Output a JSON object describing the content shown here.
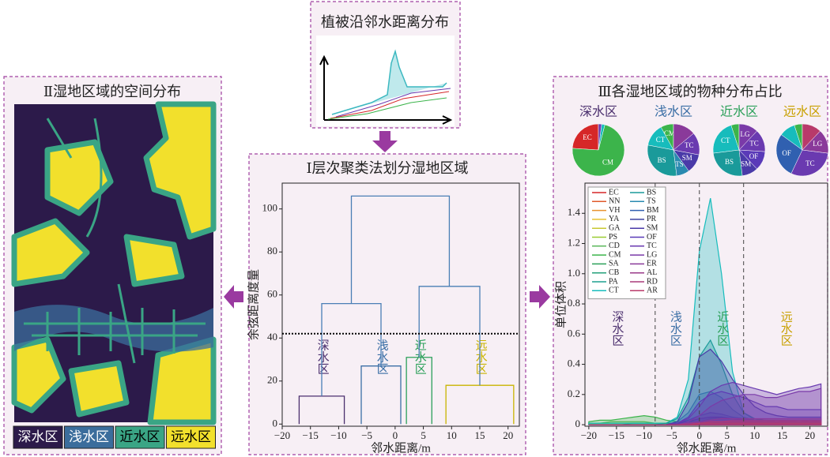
{
  "top_panel": {
    "title": "植被沿邻水距离分布"
  },
  "map_panel": {
    "title": "Ⅱ湿地区域的空间分布",
    "legend": [
      {
        "label": "深水区",
        "color": "#2c1a4a",
        "text_color": "#ffffff"
      },
      {
        "label": "浅水区",
        "color": "#3b6d9c",
        "text_color": "#ffffff"
      },
      {
        "label": "近水区",
        "color": "#3aa585",
        "text_color": "#000000"
      },
      {
        "label": "远水区",
        "color": "#f2e02c",
        "text_color": "#000000"
      }
    ]
  },
  "right_panel": {
    "title": "Ⅲ各湿地区域的物种分布占比"
  },
  "chart_data": [
    {
      "type": "dendrogram",
      "title": "Ⅰ层次聚类法划分湿地区域",
      "xlabel": "邻水距离/m",
      "ylabel": "余弦距离度量",
      "xlim": [
        -20,
        22
      ],
      "ylim": [
        -1,
        112
      ],
      "xticks": [
        {
          "value": -20,
          "label": "−20"
        },
        {
          "value": -15,
          "label": "−15"
        },
        {
          "value": -10,
          "label": "−10"
        },
        {
          "value": -5,
          "label": "−5"
        },
        0,
        5,
        10,
        15,
        20
      ],
      "yticks": [
        0,
        20,
        40,
        60,
        80,
        100
      ],
      "link_color": "#4a7fb5",
      "cut_height": 42,
      "clusters": [
        {
          "name": "深水区",
          "color": "#4b2f6e",
          "x": [
            -17,
            -9
          ],
          "height": 13
        },
        {
          "name": "浅水区",
          "color": "#3a6ea5",
          "x": [
            -6,
            1
          ],
          "height": 27
        },
        {
          "name": "近水区",
          "color": "#2ca05a",
          "x": [
            2,
            6.5
          ],
          "height": 31
        },
        {
          "name": "远水区",
          "color": "#c8b400",
          "x": [
            9,
            21
          ],
          "height": 18
        }
      ],
      "merges": [
        {
          "x": [
            -13,
            -2.5
          ],
          "height": 56,
          "child_heights": [
            13,
            27
          ]
        },
        {
          "x": [
            4.25,
            15
          ],
          "height": 64,
          "child_heights": [
            31,
            18
          ]
        },
        {
          "x": [
            -7.75,
            9.6
          ],
          "height": 106,
          "child_heights": [
            56,
            64
          ]
        }
      ]
    },
    {
      "type": "pie",
      "title": "深水区",
      "color": "#4b2f6e",
      "slices": [
        {
          "label": "EC",
          "value": 24,
          "color": "#d62728"
        },
        {
          "label": "CM",
          "value": 72,
          "color": "#3cb44b"
        },
        {
          "label": null,
          "value": 2,
          "color": "#17bcbc"
        },
        {
          "label": null,
          "value": 2,
          "color": "#6a3ab0"
        }
      ]
    },
    {
      "type": "pie",
      "title": "浅水区",
      "color": "#3a6ea5",
      "slices": [
        {
          "label": "CM",
          "value": 8,
          "color": "#3cb44b"
        },
        {
          "label": "CT",
          "value": 14,
          "color": "#17bcbc"
        },
        {
          "label": "BS",
          "value": 30,
          "color": "#1a9a9a"
        },
        {
          "label": "TS",
          "value": 8,
          "color": "#2a8ab0"
        },
        {
          "label": "SM",
          "value": 12,
          "color": "#4a3aa8"
        },
        {
          "label": "TC",
          "value": 14,
          "color": "#6a3ab0"
        },
        {
          "label": null,
          "value": 14,
          "color": "#8a3a9a"
        }
      ]
    },
    {
      "type": "pie",
      "title": "近水区",
      "color": "#2ca05a",
      "slices": [
        {
          "label": null,
          "value": 5,
          "color": "#3cb44b"
        },
        {
          "label": "CT",
          "value": 22,
          "color": "#17bcbc"
        },
        {
          "label": "BS",
          "value": 25,
          "color": "#1a9a9a"
        },
        {
          "label": "SM",
          "value": 10,
          "color": "#4a3aa8"
        },
        {
          "label": "OF",
          "value": 12,
          "color": "#5a3ab8"
        },
        {
          "label": "TC",
          "value": 14,
          "color": "#6a3ab0"
        },
        {
          "label": "LG",
          "value": 12,
          "color": "#7a3aa8"
        }
      ]
    },
    {
      "type": "pie",
      "title": "远水区",
      "color": "#c8a000",
      "slices": [
        {
          "label": null,
          "value": 5,
          "color": "#3cb44b"
        },
        {
          "label": null,
          "value": 10,
          "color": "#17bcbc"
        },
        {
          "label": "OF",
          "value": 28,
          "color": "#3060b0"
        },
        {
          "label": "TC",
          "value": 30,
          "color": "#6a3ab0"
        },
        {
          "label": "LG",
          "value": 15,
          "color": "#8a3a9a"
        },
        {
          "label": null,
          "value": 12,
          "color": "#b83a6a"
        }
      ]
    },
    {
      "type": "area",
      "xlabel": "邻水距离/m",
      "ylabel": "单位体积",
      "xlim": [
        -20.7,
        23.2
      ],
      "ylim": [
        -0.01,
        1.6
      ],
      "xticks": [
        {
          "value": -20,
          "label": "−20"
        },
        {
          "value": -15,
          "label": "−15"
        },
        {
          "value": -10,
          "label": "−10"
        },
        {
          "value": -5,
          "label": "−5"
        },
        0,
        5,
        10,
        15,
        20
      ],
      "yticks": [
        0,
        0.2,
        0.4,
        0.6,
        0.8,
        {
          "value": 1,
          "label": "1.0"
        },
        1.2,
        1.4
      ],
      "zone_boundaries": [
        -8,
        0,
        8
      ],
      "annotations": [
        {
          "text": "深水区",
          "x": -15,
          "y": 0.64,
          "color": "#4b2f6e"
        },
        {
          "text": "浅水区",
          "x": -4.5,
          "y": 0.64,
          "color": "#3a6ea5"
        },
        {
          "text": "近水区",
          "x": 4,
          "y": 0.64,
          "color": "#2ca05a"
        },
        {
          "text": "远水区",
          "x": 15.5,
          "y": 0.64,
          "color": "#c8a000"
        }
      ],
      "x": [
        -20,
        -18,
        -16,
        -14,
        -12,
        -10,
        -8,
        -6,
        -4,
        -2,
        0,
        2,
        4,
        6,
        8,
        10,
        12,
        14,
        16,
        18,
        20,
        22
      ],
      "series": [
        {
          "name": "EC",
          "color": "#d62728",
          "values": [
            0,
            0,
            0,
            0,
            0,
            0,
            0,
            0,
            0,
            0.01,
            0.02,
            0.04,
            0.05,
            0.04,
            0.03,
            0.03,
            0.03,
            0.02,
            0.03,
            0.02,
            0.03,
            0.02
          ]
        },
        {
          "name": "NN",
          "color": "#e05a2b",
          "values": [
            0,
            0,
            0,
            0,
            0,
            0,
            0,
            0,
            0,
            0,
            0.01,
            0.02,
            0.02,
            0.02,
            0.01,
            0.01,
            0.01,
            0.01,
            0.01,
            0.01,
            0.01,
            0.01
          ]
        },
        {
          "name": "VH",
          "color": "#e8922f",
          "values": [
            0,
            0,
            0,
            0,
            0,
            0,
            0,
            0,
            0,
            0,
            0.01,
            0.01,
            0.02,
            0.02,
            0.02,
            0.01,
            0.01,
            0.01,
            0.01,
            0.01,
            0.01,
            0.01
          ]
        },
        {
          "name": "YA",
          "color": "#e8c030",
          "values": [
            0,
            0,
            0,
            0,
            0,
            0,
            0,
            0,
            0,
            0,
            0,
            0.01,
            0.01,
            0.01,
            0.01,
            0.01,
            0.01,
            0.01,
            0.01,
            0.01,
            0.01,
            0.01
          ]
        },
        {
          "name": "GA",
          "color": "#c8c830",
          "values": [
            0,
            0,
            0,
            0,
            0,
            0,
            0,
            0,
            0,
            0,
            0.01,
            0.01,
            0.01,
            0.01,
            0,
            0,
            0,
            0,
            0,
            0,
            0,
            0
          ]
        },
        {
          "name": "PS",
          "color": "#9acd32",
          "values": [
            0.01,
            0.01,
            0.01,
            0.01,
            0.01,
            0.01,
            0.01,
            0.01,
            0.01,
            0.01,
            0.01,
            0.01,
            0.01,
            0,
            0,
            0,
            0,
            0,
            0,
            0,
            0,
            0
          ]
        },
        {
          "name": "CD",
          "color": "#5cb85c",
          "values": [
            0.01,
            0.01,
            0.02,
            0.02,
            0.02,
            0.02,
            0.01,
            0.01,
            0.01,
            0.01,
            0.01,
            0.01,
            0,
            0,
            0,
            0,
            0,
            0,
            0,
            0,
            0,
            0
          ]
        },
        {
          "name": "CM",
          "color": "#3cb44b",
          "values": [
            0.02,
            0.03,
            0.03,
            0.04,
            0.05,
            0.06,
            0.05,
            0.03,
            0.02,
            0.02,
            0.02,
            0.01,
            0.01,
            0.01,
            0.01,
            0,
            0,
            0,
            0,
            0,
            0,
            0
          ]
        },
        {
          "name": "SA",
          "color": "#2ca05a",
          "values": [
            0,
            0,
            0,
            0,
            0.01,
            0.01,
            0.01,
            0.01,
            0.01,
            0.01,
            0.01,
            0.01,
            0,
            0,
            0,
            0,
            0,
            0,
            0,
            0,
            0,
            0
          ]
        },
        {
          "name": "CB",
          "color": "#23a07a",
          "values": [
            0,
            0,
            0,
            0,
            0,
            0,
            0,
            0,
            0.01,
            0.01,
            0.02,
            0.02,
            0.01,
            0.01,
            0,
            0,
            0,
            0,
            0,
            0,
            0,
            0
          ]
        },
        {
          "name": "PA",
          "color": "#1fa08f",
          "values": [
            0,
            0,
            0,
            0,
            0,
            0,
            0,
            0,
            0.01,
            0.01,
            0.02,
            0.02,
            0.02,
            0.01,
            0.01,
            0,
            0,
            0,
            0,
            0,
            0,
            0
          ]
        },
        {
          "name": "CT",
          "color": "#17bcbc",
          "values": [
            0.01,
            0.01,
            0.01,
            0.01,
            0.01,
            0.01,
            0.01,
            0.01,
            0.05,
            0.3,
            1.15,
            1.5,
            1.0,
            0.35,
            0.08,
            0.03,
            0.02,
            0.02,
            0.01,
            0.01,
            0.01,
            0.01
          ]
        },
        {
          "name": "BS",
          "color": "#1a9a9a",
          "values": [
            0,
            0,
            0,
            0,
            0,
            0,
            0,
            0.01,
            0.04,
            0.18,
            0.45,
            0.56,
            0.4,
            0.2,
            0.08,
            0.04,
            0.03,
            0.02,
            0.02,
            0.02,
            0.02,
            0.02
          ]
        },
        {
          "name": "TS",
          "color": "#2a8ab0",
          "values": [
            0,
            0,
            0,
            0,
            0,
            0,
            0,
            0,
            0.02,
            0.08,
            0.2,
            0.22,
            0.18,
            0.1,
            0.05,
            0.03,
            0.02,
            0.02,
            0.02,
            0.02,
            0.02,
            0.02
          ]
        },
        {
          "name": "BM",
          "color": "#3060b0",
          "values": [
            0,
            0,
            0,
            0,
            0,
            0,
            0,
            0,
            0.01,
            0.03,
            0.06,
            0.08,
            0.07,
            0.05,
            0.04,
            0.03,
            0.03,
            0.03,
            0.03,
            0.03,
            0.03,
            0.03
          ]
        },
        {
          "name": "PR",
          "color": "#3a40a0",
          "values": [
            0,
            0,
            0,
            0,
            0,
            0,
            0,
            0,
            0.01,
            0.02,
            0.04,
            0.05,
            0.05,
            0.04,
            0.03,
            0.03,
            0.03,
            0.03,
            0.03,
            0.03,
            0.03,
            0.03
          ]
        },
        {
          "name": "SM",
          "color": "#4a3aa8",
          "values": [
            0,
            0,
            0,
            0,
            0,
            0,
            0,
            0,
            0.02,
            0.15,
            0.45,
            0.5,
            0.42,
            0.3,
            0.2,
            0.12,
            0.08,
            0.06,
            0.05,
            0.05,
            0.05,
            0.05
          ]
        },
        {
          "name": "OF",
          "color": "#5a3ab8",
          "values": [
            0,
            0,
            0,
            0,
            0,
            0,
            0,
            0,
            0.01,
            0.05,
            0.15,
            0.2,
            0.22,
            0.2,
            0.18,
            0.15,
            0.12,
            0.12,
            0.1,
            0.1,
            0.1,
            0.1
          ]
        },
        {
          "name": "TC",
          "color": "#6a3ab0",
          "values": [
            0,
            0,
            0,
            0,
            0,
            0,
            0,
            0,
            0.01,
            0.04,
            0.12,
            0.22,
            0.26,
            0.28,
            0.26,
            0.24,
            0.22,
            0.2,
            0.22,
            0.24,
            0.25,
            0.27
          ]
        },
        {
          "name": "LG",
          "color": "#7a3aa8",
          "values": [
            0,
            0,
            0,
            0,
            0,
            0,
            0,
            0,
            0,
            0.02,
            0.06,
            0.12,
            0.16,
            0.18,
            0.2,
            0.2,
            0.18,
            0.18,
            0.2,
            0.22,
            0.22,
            0.24
          ]
        },
        {
          "name": "ER",
          "color": "#8a3a9a",
          "values": [
            0,
            0,
            0,
            0,
            0,
            0,
            0,
            0,
            0,
            0.01,
            0.02,
            0.03,
            0.04,
            0.04,
            0.04,
            0.04,
            0.04,
            0.04,
            0.04,
            0.04,
            0.04,
            0.04
          ]
        },
        {
          "name": "AL",
          "color": "#9a3a8a",
          "values": [
            0,
            0,
            0,
            0,
            0,
            0,
            0,
            0,
            0,
            0.01,
            0.01,
            0.02,
            0.02,
            0.03,
            0.03,
            0.03,
            0.03,
            0.03,
            0.03,
            0.03,
            0.03,
            0.03
          ]
        },
        {
          "name": "RD",
          "color": "#aa3a7a",
          "values": [
            0,
            0,
            0,
            0,
            0,
            0,
            0,
            0,
            0,
            0,
            0.01,
            0.02,
            0.02,
            0.02,
            0.02,
            0.02,
            0.02,
            0.02,
            0.02,
            0.02,
            0.02,
            0.02
          ]
        },
        {
          "name": "AR",
          "color": "#b83a6a",
          "values": [
            0,
            0,
            0,
            0,
            0,
            0,
            0,
            0,
            0,
            0,
            0.01,
            0.01,
            0.01,
            0.01,
            0.01,
            0.01,
            0.01,
            0.01,
            0.01,
            0.01,
            0.01,
            0.01
          ]
        }
      ]
    }
  ]
}
